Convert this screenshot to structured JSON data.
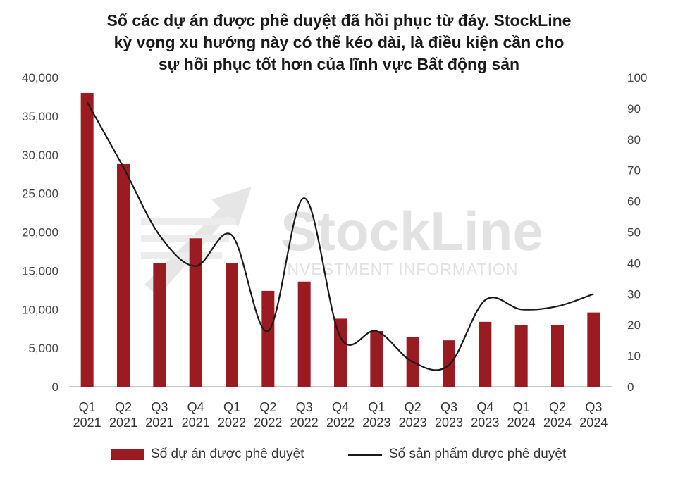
{
  "title_lines": [
    "Số các dự án được phê duyệt đã hồi phục từ đáy. StockLine",
    "kỳ vọng xu hướng này có thể kéo dài, là điều kiện cần cho",
    "sự hồi phục tốt hơn của lĩnh vực Bất động sản"
  ],
  "watermark": {
    "brand": "StockLine",
    "tagline": "INVESTMENT INFORMATION"
  },
  "colors": {
    "bar": "#9b1b22",
    "line": "#1a1a1a",
    "watermark": "#e2e2e2"
  },
  "chart_data": {
    "type": "bar+line",
    "categories": [
      [
        "Q1",
        "2021"
      ],
      [
        "Q2",
        "2021"
      ],
      [
        "Q3",
        "2021"
      ],
      [
        "Q4",
        "2021"
      ],
      [
        "Q1",
        "2022"
      ],
      [
        "Q2",
        "2022"
      ],
      [
        "Q3",
        "2022"
      ],
      [
        "Q4",
        "2022"
      ],
      [
        "Q1",
        "2023"
      ],
      [
        "Q2",
        "2023"
      ],
      [
        "Q3",
        "2023"
      ],
      [
        "Q4",
        "2023"
      ],
      [
        "Q1",
        "2024"
      ],
      [
        "Q2",
        "2024"
      ],
      [
        "Q3",
        "2024"
      ]
    ],
    "series": [
      {
        "name": "Số dự án được phê duyệt",
        "type": "bar",
        "axis": "left",
        "values": [
          38000,
          28800,
          16000,
          19200,
          16000,
          12400,
          13600,
          8800,
          7200,
          6400,
          6000,
          8400,
          8000,
          8000,
          9600
        ]
      },
      {
        "name": "Số sản phẩm được phê duyệt",
        "type": "line",
        "axis": "right",
        "values": [
          92,
          71,
          49,
          39,
          49,
          18,
          61,
          16,
          18,
          8,
          7,
          28,
          25,
          26,
          30
        ]
      }
    ],
    "y_left": {
      "min": 0,
      "max": 40000,
      "step": 5000,
      "tick_labels": [
        "0",
        "5,000",
        "10,000",
        "15,000",
        "20,000",
        "25,000",
        "30,000",
        "35,000",
        "40,000"
      ]
    },
    "y_right": {
      "min": 0,
      "max": 100,
      "step": 10,
      "tick_labels": [
        "0",
        "10",
        "20",
        "30",
        "40",
        "50",
        "60",
        "70",
        "80",
        "90",
        "100"
      ]
    },
    "grid": false,
    "legend": "bottom"
  }
}
